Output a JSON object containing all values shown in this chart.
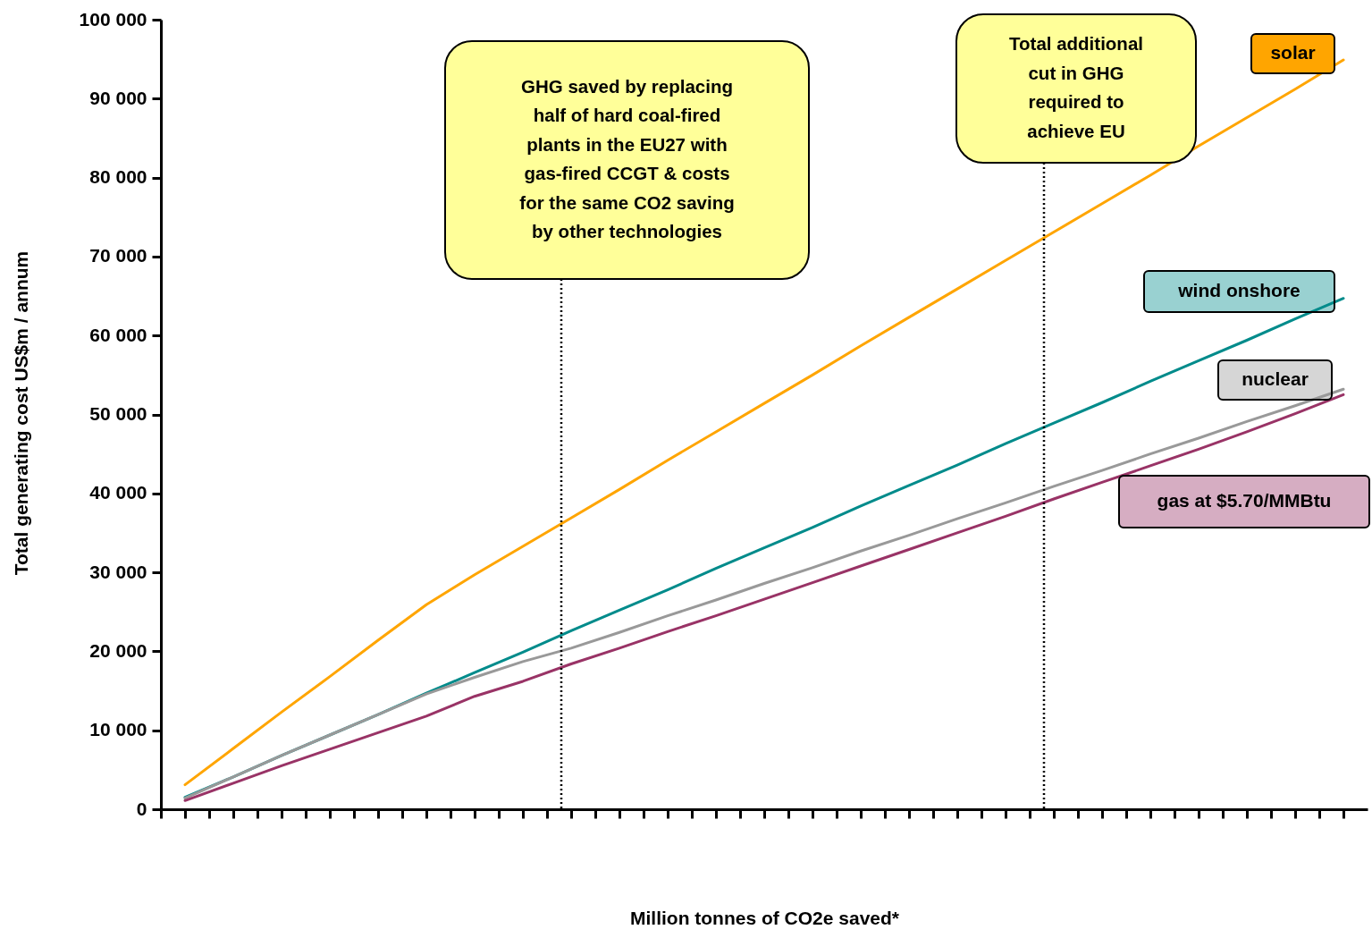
{
  "chart_data": {
    "type": "line",
    "xlabel": "Million tonnes of CO2e saved*",
    "ylabel": "Total generating cost US$m / annum",
    "categories": [
      null,
      null,
      null,
      null,
      null,
      null,
      null,
      null,
      null,
      null,
      null,
      null,
      null,
      null,
      null,
      null,
      null,
      null,
      null,
      null,
      null,
      null,
      null,
      null,
      null
    ],
    "ylim": [
      0,
      100000
    ],
    "yticks": [
      {
        "value": 0,
        "label": "0"
      },
      {
        "value": 10000,
        "label": "10 000"
      },
      {
        "value": 20000,
        "label": "20 000"
      },
      {
        "value": 30000,
        "label": "30 000"
      },
      {
        "value": 40000,
        "label": "40 000"
      },
      {
        "value": 50000,
        "label": "50 000"
      },
      {
        "value": 60000,
        "label": "60 000"
      },
      {
        "value": 70000,
        "label": "70 000"
      },
      {
        "value": 80000,
        "label": "80 000"
      },
      {
        "value": 90000,
        "label": "90 000"
      },
      {
        "value": 100000,
        "label": "100 000"
      }
    ],
    "tick_labels": "y",
    "line_style": "solid",
    "series": [
      {
        "name": "solar",
        "color": "#ffa500",
        "values": [
          3100,
          7700,
          12300,
          16800,
          21400,
          25900,
          29700,
          33300,
          36900,
          40500,
          44200,
          47800,
          51400,
          55000,
          58700,
          62300,
          65900,
          69500,
          73100,
          76700,
          80300,
          84000,
          87600,
          91200,
          94900
        ]
      },
      {
        "name": "wind onshore",
        "color": "#008b8b",
        "values": [
          1500,
          4100,
          6800,
          9400,
          12000,
          14700,
          17300,
          19900,
          22600,
          25200,
          27800,
          30500,
          33100,
          35700,
          38400,
          41000,
          43600,
          46300,
          48900,
          51500,
          54200,
          56800,
          59400,
          62100,
          64700
        ]
      },
      {
        "name": "nuclear",
        "color": "#999999",
        "values": [
          1400,
          4100,
          6800,
          9400,
          12000,
          14600,
          16700,
          18700,
          20400,
          22400,
          24500,
          26500,
          28600,
          30600,
          32700,
          34700,
          36800,
          38800,
          40900,
          42900,
          45000,
          47000,
          49100,
          51100,
          53200
        ]
      },
      {
        "name": "gas at $5.70/MMBtu",
        "color": "#993366",
        "values": [
          1100,
          3300,
          5500,
          7600,
          9700,
          11800,
          14300,
          16200,
          18400,
          20400,
          22500,
          24500,
          26600,
          28700,
          30800,
          32900,
          35000,
          37100,
          39300,
          41400,
          43500,
          45600,
          47800,
          50100,
          52500
        ]
      }
    ],
    "annotations": [
      "GHG saved by replacing half of hard coal-fired plants in the EU27 with gas-fired CCGT & costs for the same CO2 saving by other technologies",
      "Total additional cut in GHG required to achieve EU"
    ]
  }
}
